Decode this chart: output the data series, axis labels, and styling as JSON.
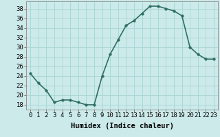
{
  "x": [
    0,
    1,
    2,
    3,
    4,
    5,
    6,
    7,
    8,
    9,
    10,
    11,
    12,
    13,
    14,
    15,
    16,
    17,
    18,
    19,
    20,
    21,
    22,
    23
  ],
  "y": [
    24.5,
    22.5,
    21.0,
    18.5,
    19.0,
    19.0,
    18.5,
    18.0,
    18.0,
    24.0,
    28.5,
    31.5,
    34.5,
    35.5,
    37.0,
    38.5,
    38.5,
    38.0,
    37.5,
    36.5,
    30.0,
    28.5,
    27.5,
    27.5
  ],
  "line_color": "#2e6e62",
  "marker": "o",
  "markersize": 2.5,
  "linewidth": 1.2,
  "bg_color": "#cceaea",
  "grid_color": "#aad4d4",
  "xlabel": "Humidex (Indice chaleur)",
  "xlim": [
    -0.5,
    23.5
  ],
  "ylim": [
    17,
    39.5
  ],
  "yticks": [
    18,
    20,
    22,
    24,
    26,
    28,
    30,
    32,
    34,
    36,
    38
  ],
  "xticks": [
    0,
    1,
    2,
    3,
    4,
    5,
    6,
    7,
    8,
    9,
    10,
    11,
    12,
    13,
    14,
    15,
    16,
    17,
    18,
    19,
    20,
    21,
    22,
    23
  ],
  "xlabel_fontsize": 7.5,
  "tick_fontsize": 6.5
}
